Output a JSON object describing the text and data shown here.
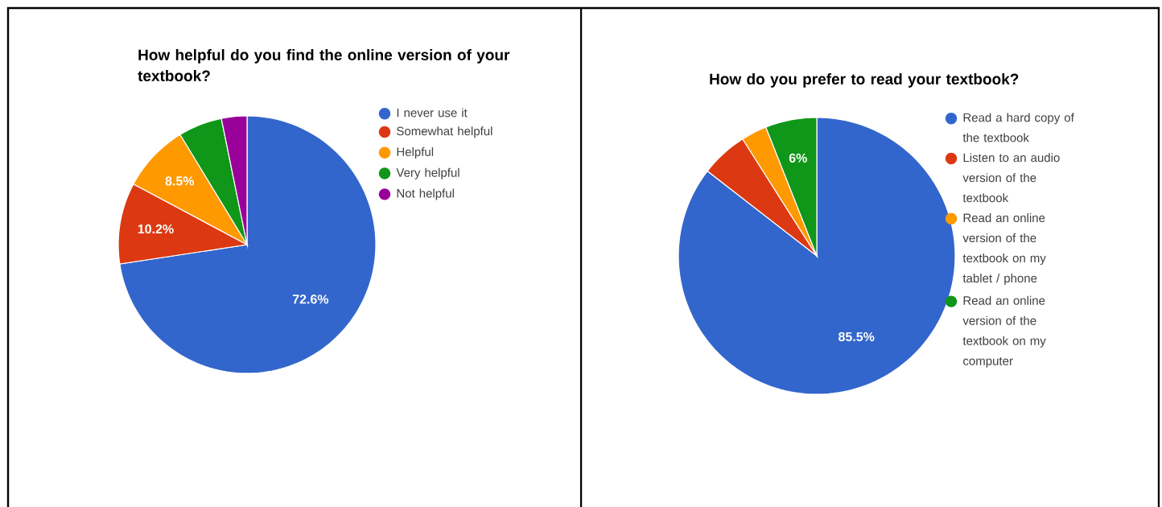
{
  "chart_data": [
    {
      "type": "pie",
      "title": "How helpful do you find the online version of your textbook?",
      "categories": [
        "I never use it",
        "Somewhat helpful",
        "Helpful",
        "Very helpful",
        "Not helpful"
      ],
      "values": [
        72.6,
        10.2,
        8.5,
        5.5,
        3.2
      ],
      "colors": [
        "#3366cc",
        "#dc3912",
        "#ff9900",
        "#109618",
        "#990099"
      ],
      "value_labels": [
        "72.6%",
        "10.2%",
        "8.5%",
        null,
        null
      ],
      "legend": "right"
    },
    {
      "type": "pie",
      "title": "How do you prefer to read your textbook?",
      "categories": [
        "Read a hard copy of the textbook",
        "Listen to an audio version of the textbook",
        "Read an online version of the textbook on my tablet / phone",
        "Read an online version of the textbook on my computer"
      ],
      "values": [
        85.5,
        5.5,
        3.0,
        6
      ],
      "colors": [
        "#3366cc",
        "#dc3912",
        "#ff9900",
        "#109618"
      ],
      "value_labels": [
        "85.5%",
        null,
        null,
        "6%"
      ],
      "legend": "right"
    }
  ]
}
